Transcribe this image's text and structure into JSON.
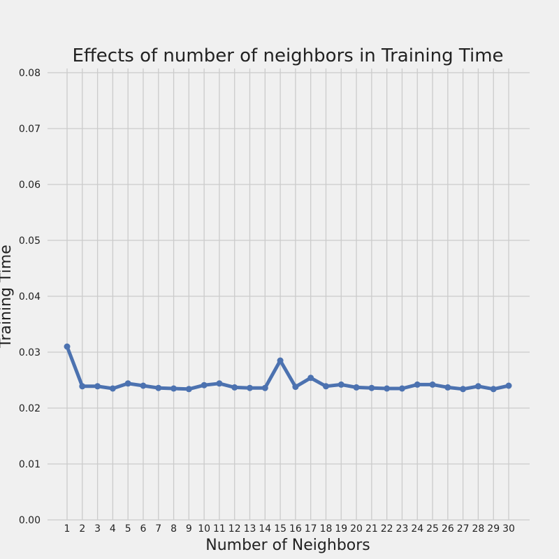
{
  "chart_data": {
    "type": "line",
    "title": "Effects of number of neighbors in Training Time",
    "xlabel": "Number of Neighbors",
    "ylabel": "Training Time",
    "x": [
      1,
      2,
      3,
      4,
      5,
      6,
      7,
      8,
      9,
      10,
      11,
      12,
      13,
      14,
      15,
      16,
      17,
      18,
      19,
      20,
      21,
      22,
      23,
      24,
      25,
      26,
      27,
      28,
      29,
      30
    ],
    "x_tick_labels": [
      "1",
      "2",
      "3",
      "4",
      "5",
      "6",
      "7",
      "8",
      "9",
      "10",
      "11",
      "12",
      "13",
      "14",
      "15",
      "16",
      "17",
      "18",
      "19",
      "20",
      "21",
      "22",
      "23",
      "24",
      "25",
      "26",
      "27",
      "28",
      "29",
      "30"
    ],
    "series": [
      {
        "values": [
          0.031,
          0.0239,
          0.0239,
          0.0235,
          0.0244,
          0.024,
          0.0236,
          0.0235,
          0.0234,
          0.0241,
          0.0244,
          0.0237,
          0.0236,
          0.0236,
          0.0285,
          0.0238,
          0.0254,
          0.0239,
          0.0242,
          0.0237,
          0.0236,
          0.0235,
          0.0235,
          0.0242,
          0.0242,
          0.0237,
          0.0234,
          0.0239,
          0.0234,
          0.024
        ],
        "color": "#4c72b0"
      }
    ],
    "ylim": [
      0.0,
      0.08
    ],
    "y_ticks": [
      0.0,
      0.01,
      0.02,
      0.03,
      0.04,
      0.05,
      0.06,
      0.07,
      0.08
    ],
    "y_tick_labels": [
      "0.00",
      "0.01",
      "0.02",
      "0.03",
      "0.04",
      "0.05",
      "0.06",
      "0.07",
      "0.08"
    ],
    "grid": true,
    "legend": "none"
  }
}
